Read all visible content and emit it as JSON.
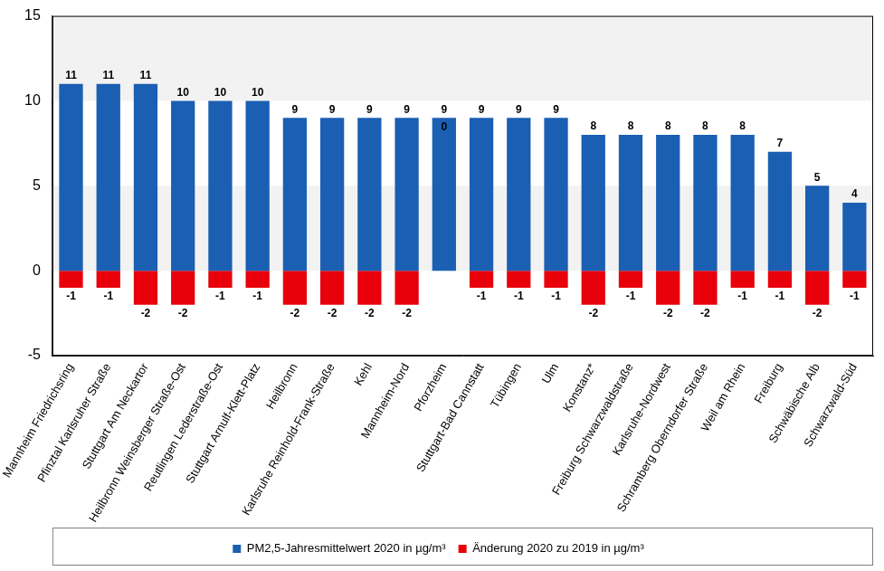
{
  "chart_data": {
    "type": "bar",
    "categories": [
      "Mannheim Friedrichsring",
      "Pfinztal Karlsruher Straße",
      "Stuttgart Am Neckartor",
      "Heilbronn Weinsberger Straße-Ost",
      "Reutlingen Lederstraße-Ost",
      "Stuttgart Arnulf-Klett-Platz",
      "Heilbronn",
      "Karlsruhe Reinhold-Frank-Straße",
      "Kehl",
      "Mannheim-Nord",
      "Pforzheim",
      "Stuttgart-Bad Cannstatt",
      "Tübingen",
      "Ulm",
      "Konstanz*",
      "Freiburg Schwarzwaldstraße",
      "Karlsruhe-Nordwest",
      "Schramberg Oberndorfer Straße",
      "Weil am Rhein",
      "Freiburg",
      "Schwäbische Alb",
      "Schwarzwald-Süd"
    ],
    "series": [
      {
        "name": "PM2,5-Jahresmittelwert 2020 in µg/m³",
        "color": "#1b5fb3",
        "values": [
          11,
          11,
          11,
          10,
          10,
          10,
          9,
          9,
          9,
          9,
          9,
          9,
          9,
          9,
          8,
          8,
          8,
          8,
          8,
          7,
          5,
          4
        ]
      },
      {
        "name": "Änderung 2020 zu 2019 in µg/m³",
        "color": "#e8000b",
        "values": [
          -1,
          -1,
          -2,
          -2,
          -1,
          -1,
          -2,
          -2,
          -2,
          -2,
          0,
          -1,
          -1,
          -1,
          -2,
          -1,
          -2,
          -2,
          -1,
          -1,
          -2,
          -1
        ]
      }
    ],
    "ylim": [
      -5,
      15
    ],
    "yticks": [
      -5,
      0,
      5,
      10,
      15
    ],
    "stacked": true,
    "data_labels": true,
    "legend": "bottom",
    "grid": false
  }
}
